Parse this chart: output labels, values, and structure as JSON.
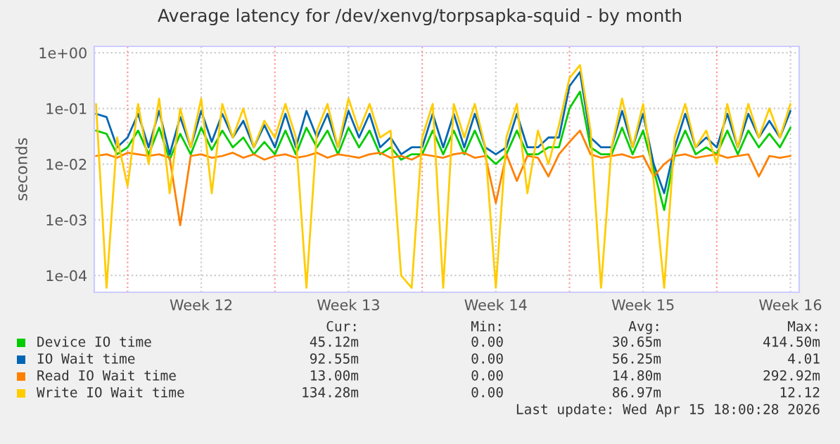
{
  "chart_data": {
    "type": "line",
    "title": "Average latency for /dev/xenvg/torpsapka-squid - by month",
    "ylabel": "seconds",
    "x": [
      "2026-03-14T12:00",
      "2026-03-15T00:00",
      "2026-03-15T12:00",
      "2026-03-16T00:00",
      "2026-03-16T12:00",
      "2026-03-17T00:00",
      "2026-03-17T12:00",
      "2026-03-18T00:00",
      "2026-03-18T12:00",
      "2026-03-19T00:00",
      "2026-03-19T12:00",
      "2026-03-20T00:00",
      "2026-03-20T12:00",
      "2026-03-21T00:00",
      "2026-03-21T12:00",
      "2026-03-22T00:00",
      "2026-03-22T12:00",
      "2026-03-23T00:00",
      "2026-03-23T12:00",
      "2026-03-24T00:00",
      "2026-03-24T12:00",
      "2026-03-25T00:00",
      "2026-03-25T12:00",
      "2026-03-26T00:00",
      "2026-03-26T12:00",
      "2026-03-27T00:00",
      "2026-03-27T12:00",
      "2026-03-28T00:00",
      "2026-03-28T12:00",
      "2026-03-29T00:00",
      "2026-03-29T12:00",
      "2026-03-30T00:00",
      "2026-03-30T12:00",
      "2026-03-31T00:00",
      "2026-03-31T12:00",
      "2026-04-01T00:00",
      "2026-04-01T12:00",
      "2026-04-02T00:00",
      "2026-04-02T12:00",
      "2026-04-03T00:00",
      "2026-04-03T12:00",
      "2026-04-04T00:00",
      "2026-04-04T12:00",
      "2026-04-05T00:00",
      "2026-04-05T12:00",
      "2026-04-06T00:00",
      "2026-04-06T12:00",
      "2026-04-07T00:00",
      "2026-04-07T12:00",
      "2026-04-08T00:00",
      "2026-04-08T12:00",
      "2026-04-09T00:00",
      "2026-04-09T12:00",
      "2026-04-10T00:00",
      "2026-04-10T12:00",
      "2026-04-11T00:00",
      "2026-04-11T12:00",
      "2026-04-12T00:00",
      "2026-04-12T12:00",
      "2026-04-13T00:00",
      "2026-04-13T12:00",
      "2026-04-14T00:00",
      "2026-04-14T12:00",
      "2026-04-15T00:00",
      "2026-04-15T12:00",
      "2026-04-16T00:00",
      "2026-04-16T12:00"
    ],
    "series": [
      {
        "name": "Device IO time",
        "color": "#00cc00",
        "values": [
          0.04,
          0.035,
          0.015,
          0.02,
          0.04,
          0.015,
          0.045,
          0.012,
          0.035,
          0.015,
          0.045,
          0.018,
          0.04,
          0.02,
          0.03,
          0.015,
          0.025,
          0.015,
          0.04,
          0.015,
          0.045,
          0.02,
          0.04,
          0.015,
          0.045,
          0.02,
          0.04,
          0.015,
          0.02,
          0.012,
          0.015,
          0.015,
          0.04,
          0.015,
          0.04,
          0.015,
          0.04,
          0.015,
          0.01,
          0.015,
          0.04,
          0.015,
          0.015,
          0.02,
          0.02,
          0.1,
          0.2,
          0.02,
          0.015,
          0.015,
          0.045,
          0.015,
          0.04,
          0.008,
          0.0015,
          0.015,
          0.04,
          0.015,
          0.02,
          0.015,
          0.04,
          0.015,
          0.04,
          0.02,
          0.035,
          0.02,
          0.045
        ]
      },
      {
        "name": "IO Wait time",
        "color": "#0066b3",
        "values": [
          0.08,
          0.07,
          0.02,
          0.03,
          0.08,
          0.02,
          0.09,
          0.015,
          0.07,
          0.02,
          0.09,
          0.025,
          0.08,
          0.03,
          0.06,
          0.02,
          0.05,
          0.02,
          0.08,
          0.02,
          0.09,
          0.03,
          0.08,
          0.02,
          0.09,
          0.03,
          0.08,
          0.02,
          0.03,
          0.015,
          0.02,
          0.02,
          0.08,
          0.02,
          0.08,
          0.02,
          0.08,
          0.02,
          0.015,
          0.02,
          0.08,
          0.02,
          0.02,
          0.03,
          0.03,
          0.25,
          0.45,
          0.03,
          0.02,
          0.02,
          0.09,
          0.02,
          0.08,
          0.01,
          0.003,
          0.02,
          0.08,
          0.02,
          0.03,
          0.02,
          0.08,
          0.02,
          0.08,
          0.03,
          0.06,
          0.03,
          0.09
        ]
      },
      {
        "name": "Read IO Wait time",
        "color": "#ff8000",
        "values": [
          0.014,
          0.015,
          0.013,
          0.016,
          0.015,
          0.014,
          0.015,
          0.013,
          0.0008,
          0.014,
          0.015,
          0.013,
          0.014,
          0.016,
          0.013,
          0.015,
          0.012,
          0.014,
          0.015,
          0.013,
          0.014,
          0.016,
          0.013,
          0.015,
          0.014,
          0.013,
          0.015,
          0.016,
          0.013,
          0.014,
          0.012,
          0.015,
          0.014,
          0.013,
          0.015,
          0.016,
          0.013,
          0.014,
          0.002,
          0.015,
          0.005,
          0.014,
          0.013,
          0.006,
          0.015,
          0.025,
          0.04,
          0.015,
          0.013,
          0.014,
          0.015,
          0.013,
          0.014,
          0.006,
          0.01,
          0.014,
          0.015,
          0.013,
          0.014,
          0.015,
          0.013,
          0.014,
          0.015,
          0.006,
          0.014,
          0.013,
          0.014
        ]
      },
      {
        "name": "Write IO Wait time",
        "color": "#ffcc00",
        "values": [
          0.12,
          6e-05,
          0.03,
          0.004,
          0.12,
          0.01,
          0.15,
          0.003,
          0.1,
          0.02,
          0.15,
          0.003,
          0.12,
          0.03,
          0.1,
          0.02,
          0.06,
          0.03,
          0.12,
          0.03,
          6e-05,
          0.04,
          0.12,
          0.02,
          0.15,
          0.04,
          0.12,
          0.03,
          0.04,
          0.0001,
          6e-05,
          0.03,
          0.12,
          6e-05,
          0.12,
          0.03,
          0.12,
          0.02,
          6e-05,
          0.03,
          0.12,
          0.003,
          0.04,
          0.01,
          0.05,
          0.35,
          0.6,
          0.04,
          6e-05,
          0.02,
          0.15,
          0.02,
          0.12,
          0.005,
          6e-05,
          0.03,
          0.12,
          0.02,
          0.04,
          0.01,
          0.12,
          0.02,
          0.12,
          0.03,
          0.1,
          0.03,
          0.12
        ]
      }
    ],
    "log": "y",
    "ylim": [
      5e-05,
      1.3
    ],
    "yticks": [
      {
        "value": 0.0001,
        "label": "1e-04"
      },
      {
        "value": 0.001,
        "label": "1e-03"
      },
      {
        "value": 0.01,
        "label": "1e-02"
      },
      {
        "value": 0.1,
        "label": "1e-01"
      },
      {
        "value": 1,
        "label": "1e+00"
      }
    ],
    "xlim": [
      "2026-03-14T10:00",
      "2026-04-16T22:00"
    ],
    "xticks": [
      {
        "value": "2026-03-19T12:00",
        "label": "Week 12"
      },
      {
        "value": "2026-03-26T12:00",
        "label": "Week 13"
      },
      {
        "value": "2026-04-02T12:00",
        "label": "Week 14"
      },
      {
        "value": "2026-04-09T12:00",
        "label": "Week 15"
      },
      {
        "value": "2026-04-16T12:00",
        "label": "Week 16"
      }
    ],
    "ref_lines": [
      {
        "axis": "x",
        "value": "2026-03-16T00:00",
        "color": "#ff9999",
        "line_style": "dotted"
      },
      {
        "axis": "x",
        "value": "2026-03-23T00:00",
        "color": "#ff9999",
        "line_style": "dotted"
      },
      {
        "axis": "x",
        "value": "2026-03-30T00:00",
        "color": "#ff9999",
        "line_style": "dotted"
      },
      {
        "axis": "x",
        "value": "2026-04-06T00:00",
        "color": "#ff9999",
        "line_style": "dotted"
      },
      {
        "axis": "x",
        "value": "2026-04-13T00:00",
        "color": "#ff9999",
        "line_style": "dotted"
      }
    ],
    "grid": true,
    "legend": "bottom",
    "line_style": "solid",
    "annotations": [
      "Cur:",
      "Min:",
      "Avg:",
      "Max:",
      "45.12m",
      "0.00",
      "30.65m",
      "414.50m",
      "92.55m",
      "0.00",
      "56.25m",
      "4.01",
      "13.00m",
      "0.00",
      "14.80m",
      "292.92m",
      "134.28m",
      "0.00",
      "86.97m",
      "12.12",
      "Last update: Wed Apr 15 18:00:28 2026"
    ]
  }
}
